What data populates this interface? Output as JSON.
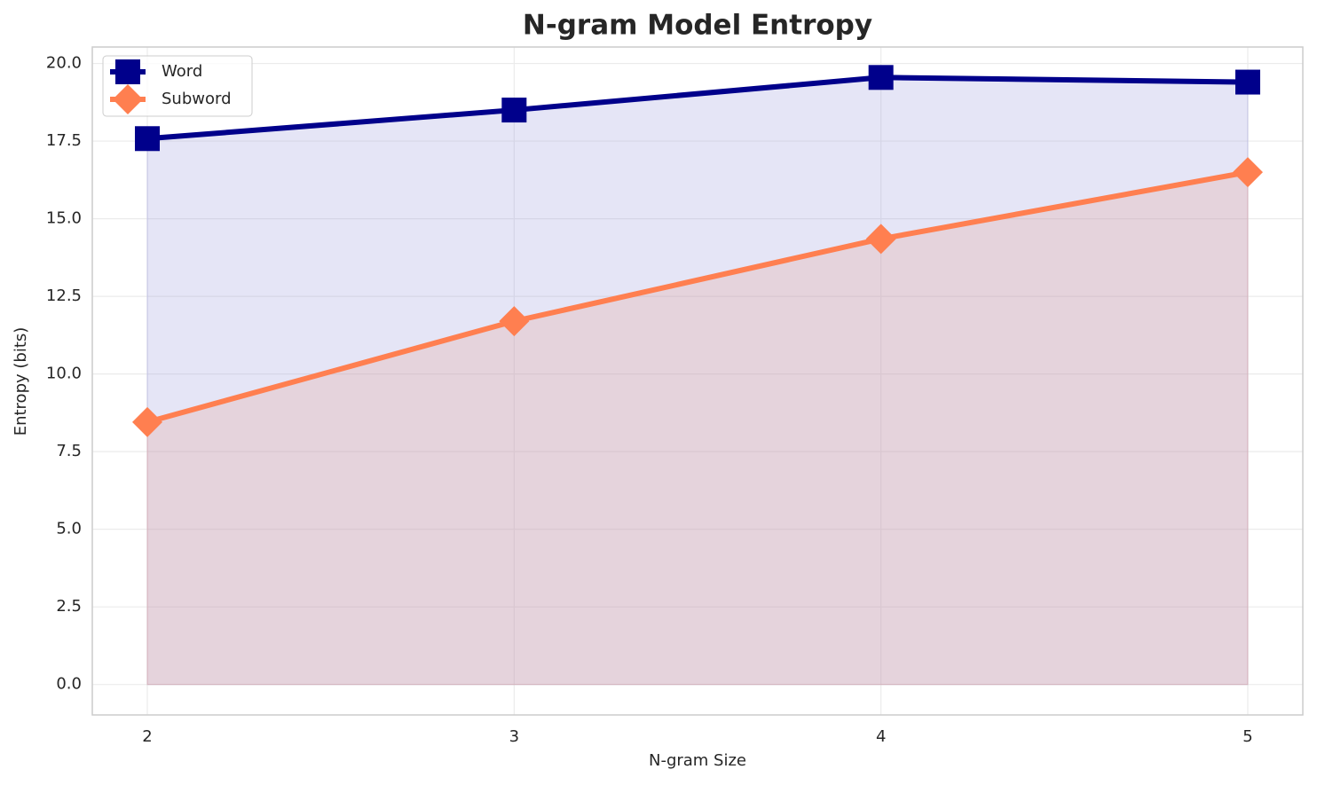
{
  "chart_data": {
    "type": "line",
    "title": "N-gram Model Entropy",
    "x_label": "N-gram Size",
    "y_label": "Entropy (bits)",
    "x": [
      2,
      3,
      4,
      5
    ],
    "series": [
      {
        "name": "Word",
        "color": "#00008b",
        "fill_color": "#9999dd",
        "marker": "square",
        "values": [
          17.58,
          18.5,
          19.55,
          19.4
        ]
      },
      {
        "name": "Subword",
        "color": "#ff7f50",
        "fill_color": "#e8a090",
        "marker": "diamond",
        "values": [
          8.45,
          11.7,
          14.35,
          16.5
        ]
      }
    ],
    "xlim": [
      1.85,
      5.15
    ],
    "xticks": [
      2,
      3,
      4,
      5
    ],
    "ylim": [
      -0.98,
      20.53
    ],
    "yticks": [
      {
        "value": 0,
        "label": "0.0"
      },
      {
        "value": 2.5,
        "label": "2.5"
      },
      {
        "value": 5,
        "label": "5.0"
      },
      {
        "value": 7.5,
        "label": "7.5"
      },
      {
        "value": 10,
        "label": "10.0"
      },
      {
        "value": 12.5,
        "label": "12.5"
      },
      {
        "value": 15,
        "label": "15.0"
      },
      {
        "value": 17.5,
        "label": "17.5"
      },
      {
        "value": 20,
        "label": "20.0"
      }
    ],
    "grid": true,
    "legend": "upper-left"
  }
}
